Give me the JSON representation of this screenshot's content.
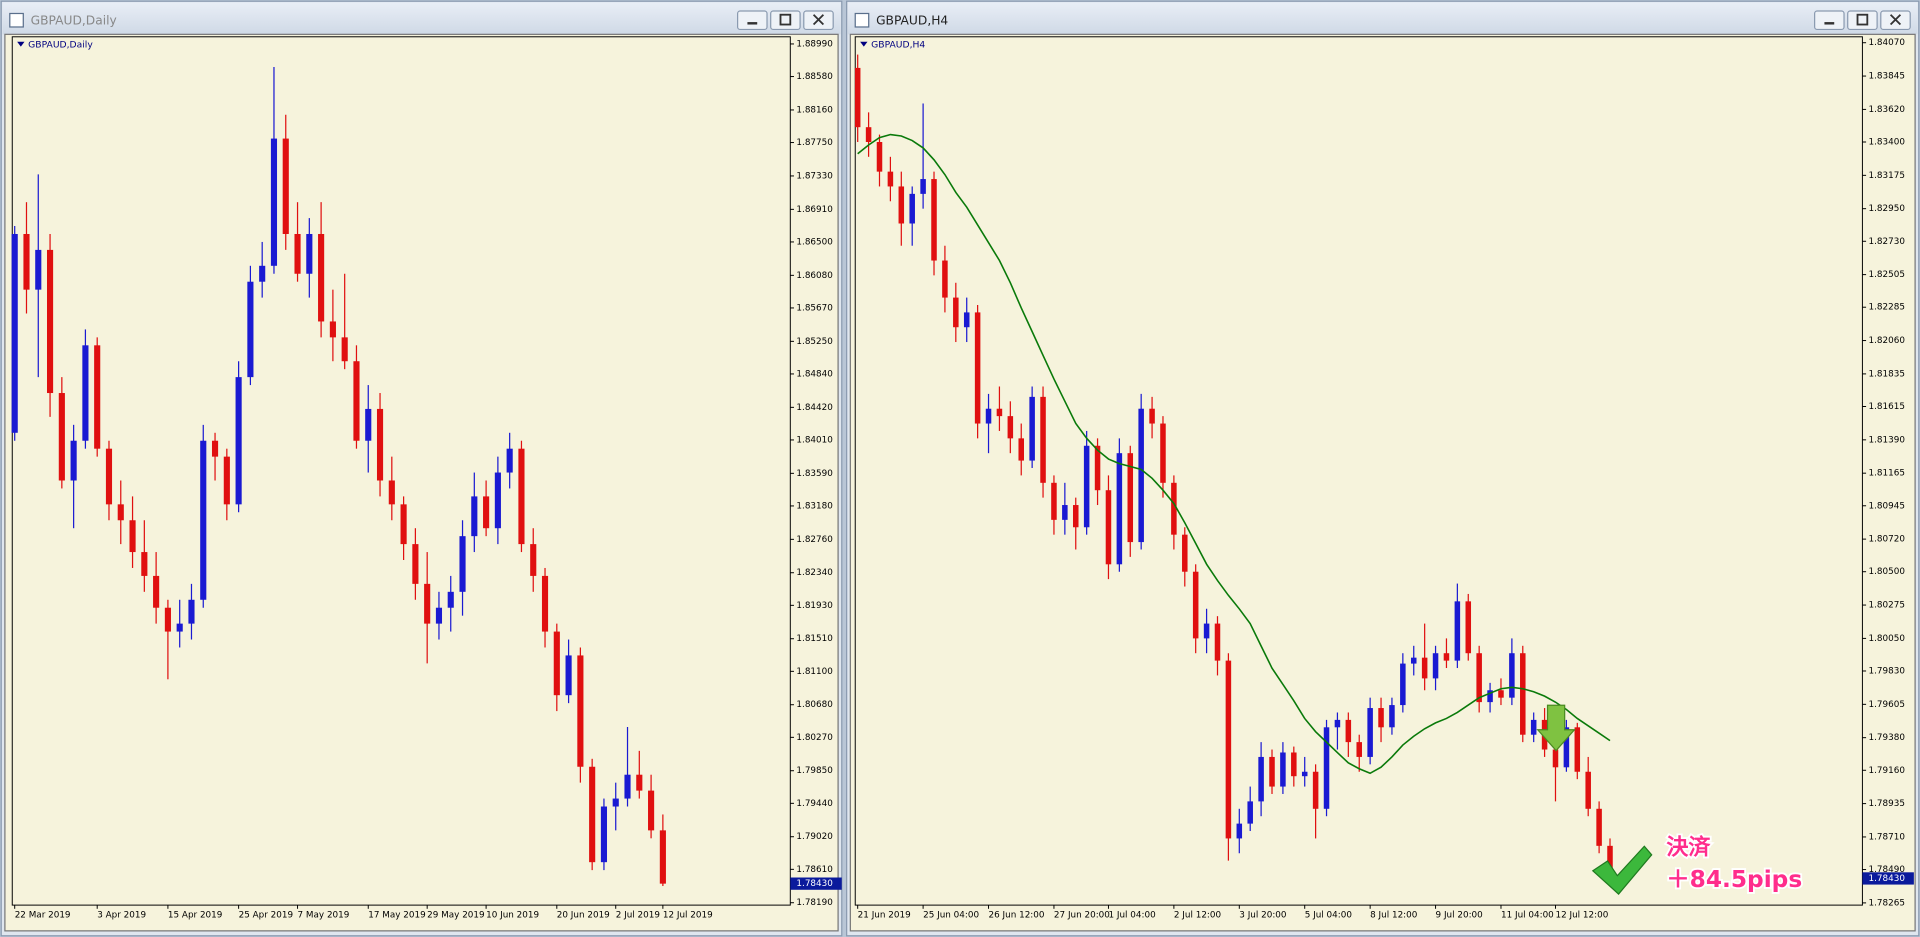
{
  "windows": [
    {
      "title": "GBPAUD,Daily"
    },
    {
      "title": "GBPAUD,H4"
    }
  ],
  "annotation": [
    "決済",
    "＋84.5pips"
  ],
  "chart_data": [
    {
      "type": "candlestick",
      "title": "GBPAUD,Daily",
      "up_color": "#1a1ad2",
      "down_color": "#e01010",
      "ylim": [
        1.7816,
        1.8908
      ],
      "yticks": [
        {
          "value": 1.8899,
          "label": "1.88990"
        },
        {
          "value": 1.8858,
          "label": "1.88580"
        },
        {
          "value": 1.8816,
          "label": "1.88160"
        },
        {
          "value": 1.8775,
          "label": "1.87750"
        },
        {
          "value": 1.8733,
          "label": "1.87330"
        },
        {
          "value": 1.8691,
          "label": "1.86910"
        },
        {
          "value": 1.865,
          "label": "1.86500"
        },
        {
          "value": 1.8608,
          "label": "1.86080"
        },
        {
          "value": 1.8567,
          "label": "1.85670"
        },
        {
          "value": 1.8525,
          "label": "1.85250"
        },
        {
          "value": 1.8484,
          "label": "1.84840"
        },
        {
          "value": 1.8442,
          "label": "1.84420"
        },
        {
          "value": 1.8401,
          "label": "1.84010"
        },
        {
          "value": 1.8359,
          "label": "1.83590"
        },
        {
          "value": 1.8318,
          "label": "1.83180"
        },
        {
          "value": 1.8276,
          "label": "1.82760"
        },
        {
          "value": 1.8234,
          "label": "1.82340"
        },
        {
          "value": 1.8193,
          "label": "1.81930"
        },
        {
          "value": 1.8151,
          "label": "1.81510"
        },
        {
          "value": 1.811,
          "label": "1.81100"
        },
        {
          "value": 1.8068,
          "label": "1.80680"
        },
        {
          "value": 1.8027,
          "label": "1.80270"
        },
        {
          "value": 1.7985,
          "label": "1.79850"
        },
        {
          "value": 1.7944,
          "label": "1.79440"
        },
        {
          "value": 1.7902,
          "label": "1.79020"
        },
        {
          "value": 1.7861,
          "label": "1.78610"
        },
        {
          "value": 1.7819,
          "label": "1.78190"
        }
      ],
      "current_price": {
        "value": 1.7843,
        "label": "1.78430"
      },
      "categories": [
        "22 Mar 2019",
        null,
        null,
        null,
        null,
        null,
        null,
        "3 Apr 2019",
        null,
        null,
        null,
        null,
        null,
        "15 Apr 2019",
        null,
        null,
        null,
        null,
        null,
        "25 Apr 2019",
        null,
        null,
        null,
        null,
        "7 May 2019",
        null,
        null,
        null,
        null,
        null,
        "17 May 2019",
        null,
        null,
        null,
        null,
        "29 May 2019",
        null,
        null,
        null,
        null,
        "10 Jun 2019",
        null,
        null,
        null,
        null,
        null,
        "20 Jun 2019",
        null,
        null,
        null,
        null,
        "2 Jul 2019",
        null,
        null,
        null,
        "12 Jul 2019"
      ],
      "open": [
        1.841,
        1.866,
        1.859,
        1.864,
        1.846,
        1.835,
        1.84,
        1.852,
        1.839,
        1.832,
        1.83,
        1.826,
        1.823,
        1.819,
        1.816,
        1.817,
        1.82,
        1.84,
        1.838,
        1.832,
        1.848,
        1.86,
        1.862,
        1.878,
        1.866,
        1.861,
        1.866,
        1.855,
        1.853,
        1.85,
        1.84,
        1.844,
        1.835,
        1.832,
        1.827,
        1.822,
        1.817,
        1.819,
        1.821,
        1.828,
        1.833,
        1.829,
        1.836,
        1.839,
        1.827,
        1.823,
        1.816,
        1.808,
        1.813,
        1.799,
        1.787,
        1.794,
        1.795,
        1.798,
        1.796,
        1.791
      ],
      "high": [
        1.867,
        1.87,
        1.8735,
        1.866,
        1.848,
        1.842,
        1.854,
        1.853,
        1.84,
        1.835,
        1.833,
        1.83,
        1.826,
        1.82,
        1.82,
        1.822,
        1.842,
        1.841,
        1.839,
        1.85,
        1.862,
        1.865,
        1.887,
        1.881,
        1.87,
        1.868,
        1.87,
        1.859,
        1.861,
        1.852,
        1.847,
        1.846,
        1.838,
        1.833,
        1.829,
        1.826,
        1.821,
        1.823,
        1.83,
        1.836,
        1.835,
        1.838,
        1.841,
        1.84,
        1.829,
        1.824,
        1.817,
        1.815,
        1.814,
        1.8,
        1.795,
        1.797,
        1.804,
        1.801,
        1.798,
        1.793
      ],
      "low": [
        1.84,
        1.856,
        1.848,
        1.843,
        1.834,
        1.829,
        1.839,
        1.838,
        1.83,
        1.827,
        1.824,
        1.821,
        1.817,
        1.81,
        1.814,
        1.815,
        1.819,
        1.835,
        1.83,
        1.831,
        1.847,
        1.858,
        1.861,
        1.864,
        1.86,
        1.858,
        1.853,
        1.85,
        1.849,
        1.839,
        1.836,
        1.833,
        1.83,
        1.825,
        1.82,
        1.812,
        1.815,
        1.816,
        1.818,
        1.826,
        1.828,
        1.827,
        1.834,
        1.826,
        1.821,
        1.814,
        1.806,
        1.807,
        1.797,
        1.786,
        1.786,
        1.791,
        1.794,
        1.795,
        1.79,
        1.784
      ],
      "close": [
        1.866,
        1.859,
        1.864,
        1.846,
        1.835,
        1.84,
        1.852,
        1.839,
        1.832,
        1.83,
        1.826,
        1.823,
        1.819,
        1.816,
        1.817,
        1.82,
        1.84,
        1.838,
        1.832,
        1.848,
        1.86,
        1.862,
        1.878,
        1.866,
        1.861,
        1.866,
        1.855,
        1.853,
        1.85,
        1.84,
        1.844,
        1.835,
        1.832,
        1.827,
        1.822,
        1.817,
        1.819,
        1.821,
        1.828,
        1.833,
        1.829,
        1.836,
        1.839,
        1.827,
        1.823,
        1.816,
        1.808,
        1.813,
        1.799,
        1.787,
        1.794,
        1.795,
        1.798,
        1.796,
        1.791,
        1.7843
      ]
    },
    {
      "type": "candlestick",
      "title": "GBPAUD,H4",
      "up_color": "#1a1ad2",
      "down_color": "#e01010",
      "ma_color": "#0a7a0a",
      "ylim": [
        1.7825,
        1.8411
      ],
      "yticks": [
        {
          "value": 1.8407,
          "label": "1.84070"
        },
        1.83845,
        {
          "value": 1.8362,
          "label": "1.83620"
        },
        {
          "value": 1.834,
          "label": "1.83400"
        },
        1.83175,
        {
          "value": 1.8295,
          "label": "1.82950"
        },
        {
          "value": 1.8273,
          "label": "1.82730"
        },
        1.82505,
        1.82285,
        {
          "value": 1.8206,
          "label": "1.82060"
        },
        1.81835,
        1.81615,
        {
          "value": 1.8139,
          "label": "1.81390"
        },
        1.81165,
        1.80945,
        {
          "value": 1.8072,
          "label": "1.80720"
        },
        {
          "value": 1.805,
          "label": "1.80500"
        },
        1.80275,
        {
          "value": 1.8005,
          "label": "1.80050"
        },
        {
          "value": 1.7983,
          "label": "1.79830"
        },
        1.79605,
        {
          "value": 1.7938,
          "label": "1.79380"
        },
        {
          "value": 1.7916,
          "label": "1.79160"
        },
        1.78935,
        {
          "value": 1.7871,
          "label": "1.78710"
        },
        {
          "value": 1.7849,
          "label": "1.78490"
        },
        1.78265
      ],
      "current_price": {
        "value": 1.7843,
        "label": "1.78430"
      },
      "categories": [
        "21 Jun 2019",
        null,
        null,
        null,
        null,
        null,
        "25 Jun 04:00",
        null,
        null,
        null,
        null,
        null,
        "26 Jun 12:00",
        null,
        null,
        null,
        null,
        null,
        "27 Jun 20:00",
        null,
        null,
        null,
        null,
        "1 Jul 04:00",
        null,
        null,
        null,
        null,
        null,
        "2 Jul 12:00",
        null,
        null,
        null,
        null,
        null,
        "3 Jul 20:00",
        null,
        null,
        null,
        null,
        null,
        "5 Jul 04:00",
        null,
        null,
        null,
        null,
        null,
        "8 Jul 12:00",
        null,
        null,
        null,
        null,
        null,
        "9 Jul 20:00",
        null,
        null,
        null,
        null,
        null,
        "11 Jul 04:00",
        null,
        null,
        null,
        null,
        "12 Jul 12:00",
        null,
        null,
        null,
        null,
        null
      ],
      "open": [
        1.839,
        1.835,
        1.834,
        1.832,
        1.831,
        1.8285,
        1.8305,
        1.8315,
        1.826,
        1.8235,
        1.8215,
        1.8225,
        1.815,
        1.816,
        1.8155,
        1.814,
        1.8125,
        1.8168,
        1.811,
        1.8085,
        1.8095,
        1.808,
        1.8135,
        1.8105,
        1.8055,
        1.813,
        1.807,
        1.816,
        1.815,
        1.811,
        1.8075,
        1.805,
        1.8005,
        1.8015,
        1.799,
        1.787,
        1.788,
        1.7895,
        1.7925,
        1.7905,
        1.7928,
        1.7912,
        1.7915,
        1.789,
        1.7945,
        1.795,
        1.7935,
        1.7925,
        1.7958,
        1.7945,
        1.796,
        1.7988,
        1.7992,
        1.7978,
        1.7995,
        1.799,
        1.803,
        1.7995,
        1.7962,
        1.797,
        1.7965,
        1.7995,
        1.794,
        1.795,
        1.793,
        1.7918,
        1.7945,
        1.7915,
        1.789,
        1.7865
      ],
      "high": [
        1.8399,
        1.836,
        1.8345,
        1.833,
        1.832,
        1.831,
        1.8366,
        1.832,
        1.827,
        1.8245,
        1.8235,
        1.823,
        1.817,
        1.8175,
        1.8165,
        1.815,
        1.8175,
        1.8175,
        1.8115,
        1.811,
        1.81,
        1.8145,
        1.814,
        1.8115,
        1.814,
        1.8135,
        1.817,
        1.8168,
        1.8155,
        1.8115,
        1.808,
        1.8055,
        1.8025,
        1.802,
        1.7995,
        1.789,
        1.7905,
        1.7935,
        1.793,
        1.7935,
        1.7932,
        1.7925,
        1.792,
        1.795,
        1.7955,
        1.7955,
        1.794,
        1.7965,
        1.7965,
        1.7965,
        1.7995,
        1.8,
        1.8015,
        1.8,
        1.8005,
        1.8042,
        1.8035,
        1.8,
        1.7975,
        1.7978,
        1.8005,
        1.8,
        1.7955,
        1.7958,
        1.7935,
        1.795,
        1.7948,
        1.7925,
        1.7895,
        1.787
      ],
      "low": [
        1.834,
        1.833,
        1.831,
        1.83,
        1.827,
        1.827,
        1.8295,
        1.825,
        1.8225,
        1.8205,
        1.8205,
        1.814,
        1.813,
        1.8145,
        1.813,
        1.8115,
        1.812,
        1.81,
        1.8075,
        1.8075,
        1.8065,
        1.8075,
        1.8095,
        1.8045,
        1.805,
        1.806,
        1.8065,
        1.814,
        1.81,
        1.8065,
        1.804,
        1.7995,
        1.7995,
        1.798,
        1.7855,
        1.786,
        1.7875,
        1.7885,
        1.79,
        1.79,
        1.7905,
        1.7905,
        1.787,
        1.7885,
        1.793,
        1.7925,
        1.7915,
        1.792,
        1.7935,
        1.794,
        1.7955,
        1.798,
        1.797,
        1.797,
        1.7985,
        1.7985,
        1.799,
        1.7955,
        1.7955,
        1.796,
        1.796,
        1.7935,
        1.7935,
        1.7925,
        1.7895,
        1.7915,
        1.791,
        1.7885,
        1.786,
        1.784
      ],
      "close": [
        1.835,
        1.834,
        1.832,
        1.831,
        1.8285,
        1.8305,
        1.8315,
        1.826,
        1.8235,
        1.8215,
        1.8225,
        1.815,
        1.816,
        1.8155,
        1.814,
        1.8125,
        1.8168,
        1.811,
        1.8085,
        1.8095,
        1.808,
        1.8135,
        1.8105,
        1.8055,
        1.813,
        1.807,
        1.816,
        1.815,
        1.811,
        1.8075,
        1.805,
        1.8005,
        1.8015,
        1.799,
        1.787,
        1.788,
        1.7895,
        1.7925,
        1.7905,
        1.7928,
        1.7912,
        1.7915,
        1.789,
        1.7945,
        1.795,
        1.7935,
        1.7925,
        1.7958,
        1.7945,
        1.796,
        1.7988,
        1.7992,
        1.7978,
        1.7995,
        1.799,
        1.803,
        1.7995,
        1.7962,
        1.797,
        1.7965,
        1.7995,
        1.794,
        1.795,
        1.793,
        1.7918,
        1.7945,
        1.7915,
        1.789,
        1.7865,
        1.7843
      ],
      "ma": [
        1.8332,
        1.8338,
        1.8343,
        1.8345,
        1.8344,
        1.8341,
        1.8336,
        1.8328,
        1.8318,
        1.8306,
        1.8296,
        1.8284,
        1.8272,
        1.826,
        1.8245,
        1.8228,
        1.8212,
        1.8196,
        1.818,
        1.8165,
        1.815,
        1.814,
        1.8132,
        1.8126,
        1.8123,
        1.8121,
        1.8119,
        1.8113,
        1.8105,
        1.8096,
        1.8083,
        1.8069,
        1.8055,
        1.8044,
        1.8034,
        1.8025,
        1.8015,
        1.8,
        1.7985,
        1.7974,
        1.7963,
        1.7951,
        1.7942,
        1.7935,
        1.7928,
        1.7921,
        1.7917,
        1.7914,
        1.7918,
        1.7925,
        1.7933,
        1.7939,
        1.7944,
        1.7948,
        1.7951,
        1.7955,
        1.796,
        1.7965,
        1.7968,
        1.7971,
        1.7972,
        1.7971,
        1.7969,
        1.7966,
        1.7962,
        1.7957,
        1.7951,
        1.7946,
        1.7941,
        1.7936
      ]
    }
  ]
}
